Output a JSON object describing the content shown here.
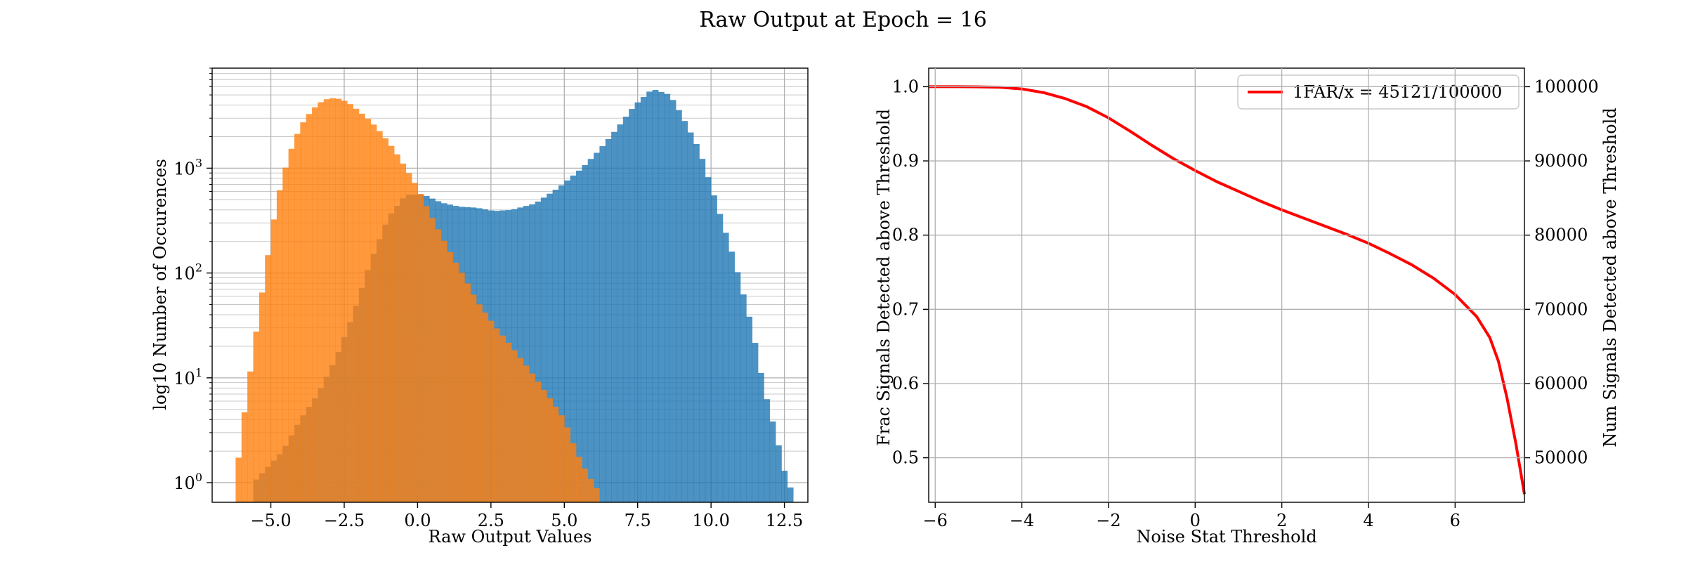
{
  "figure": {
    "suptitle": "Raw Output at Epoch = 16"
  },
  "colors": {
    "signal": "#1f77b4",
    "noise": "#ff7f0e",
    "line": "#ff0000",
    "grid": "#b0b0b0"
  },
  "chart_data": [
    {
      "type": "histogram",
      "title": "",
      "xlabel": "Raw Output Values",
      "ylabel": "log10 Number of Occurences",
      "xlim": [
        -7.0,
        13.3
      ],
      "ylim": [
        0.65,
        9000
      ],
      "yscale": "log",
      "grid": true,
      "bin_width": 0.2,
      "xticks": [
        -5.0,
        -2.5,
        0.0,
        2.5,
        5.0,
        7.5,
        10.0,
        12.5
      ],
      "xtick_labels": [
        "−5.0",
        "−2.5",
        "0.0",
        "2.5",
        "5.0",
        "7.5",
        "10.0",
        "12.5"
      ],
      "yticks_major": [
        {
          "value": 1,
          "base": "10",
          "exp": "0"
        },
        {
          "value": 10,
          "base": "10",
          "exp": "1"
        },
        {
          "value": 100,
          "base": "10",
          "exp": "2"
        },
        {
          "value": 1000,
          "base": "10",
          "exp": "3"
        }
      ],
      "series": [
        {
          "key": "signal",
          "alpha": 0.8,
          "points": [
            [
              -5.6,
              1
            ],
            [
              -4.6,
              2
            ],
            [
              -4.0,
              4
            ],
            [
              -3.4,
              7
            ],
            [
              -2.8,
              15
            ],
            [
              -2.2,
              40
            ],
            [
              -1.6,
              130
            ],
            [
              -1.0,
              340
            ],
            [
              -0.4,
              560
            ],
            [
              0.2,
              560
            ],
            [
              0.8,
              470
            ],
            [
              1.4,
              430
            ],
            [
              2.0,
              420
            ],
            [
              2.6,
              390
            ],
            [
              3.2,
              400
            ],
            [
              4.0,
              460
            ],
            [
              4.8,
              650
            ],
            [
              5.6,
              1000
            ],
            [
              6.2,
              1500
            ],
            [
              6.8,
              2400
            ],
            [
              7.4,
              4000
            ],
            [
              8.0,
              5700
            ],
            [
              8.6,
              5000
            ],
            [
              9.0,
              3200
            ],
            [
              9.6,
              1500
            ],
            [
              10.2,
              450
            ],
            [
              10.8,
              130
            ],
            [
              11.4,
              30
            ],
            [
              11.8,
              8
            ],
            [
              12.2,
              3
            ],
            [
              12.5,
              1.3
            ],
            [
              12.7,
              0.9
            ]
          ]
        },
        {
          "key": "noise",
          "alpha": 0.8,
          "points": [
            [
              -6.2,
              1
            ],
            [
              -6.0,
              3
            ],
            [
              -5.6,
              18
            ],
            [
              -5.2,
              100
            ],
            [
              -4.8,
              480
            ],
            [
              -4.4,
              1300
            ],
            [
              -4.0,
              2500
            ],
            [
              -3.6,
              3600
            ],
            [
              -3.2,
              4500
            ],
            [
              -2.8,
              4700
            ],
            [
              -2.4,
              4300
            ],
            [
              -2.0,
              3500
            ],
            [
              -1.6,
              2800
            ],
            [
              -1.2,
              2100
            ],
            [
              -0.8,
              1500
            ],
            [
              -0.4,
              1000
            ],
            [
              0.0,
              650
            ],
            [
              0.4,
              380
            ],
            [
              0.8,
              230
            ],
            [
              1.2,
              140
            ],
            [
              1.6,
              90
            ],
            [
              2.0,
              55
            ],
            [
              2.6,
              32
            ],
            [
              3.2,
              20
            ],
            [
              3.8,
              12
            ],
            [
              4.4,
              7
            ],
            [
              5.0,
              4
            ],
            [
              5.4,
              2
            ],
            [
              5.8,
              1.2
            ],
            [
              6.2,
              0.8
            ]
          ]
        }
      ]
    },
    {
      "type": "line",
      "title": "",
      "xlabel": "Noise Stat Threshold",
      "ylabel": "Frac Signals Detected above Threshold",
      "ylabel_right": "Num Signals Detected above Threshold",
      "xlim": [
        -6.15,
        7.6
      ],
      "ylim": [
        0.44,
        1.025
      ],
      "ylim_right": [
        44000,
        102500
      ],
      "grid": true,
      "xticks": [
        -6,
        -4,
        -2,
        0,
        2,
        4,
        6
      ],
      "xtick_labels": [
        "−6",
        "−4",
        "−2",
        "0",
        "2",
        "4",
        "6"
      ],
      "yticks": [
        0.5,
        0.6,
        0.7,
        0.8,
        0.9,
        1.0
      ],
      "ytick_labels": [
        "0.5",
        "0.6",
        "0.7",
        "0.8",
        "0.9",
        "1.0"
      ],
      "yticks_right": [
        50000,
        60000,
        70000,
        80000,
        90000,
        100000
      ],
      "ytick_labels_right": [
        "50000",
        "60000",
        "70000",
        "80000",
        "90000",
        "100000"
      ],
      "legend": {
        "placement": "top-right",
        "label": "1FAR/x = 45121/100000"
      },
      "series": [
        {
          "name": "1FAR/x = 45121/100000",
          "x": [
            -6.15,
            -5.5,
            -5.0,
            -4.5,
            -4.0,
            -3.5,
            -3.0,
            -2.5,
            -2.0,
            -1.5,
            -1.0,
            -0.5,
            0.0,
            0.5,
            1.0,
            1.5,
            2.0,
            2.5,
            3.0,
            3.5,
            4.0,
            4.5,
            5.0,
            5.5,
            6.0,
            6.5,
            6.8,
            7.0,
            7.2,
            7.4,
            7.6
          ],
          "y": [
            1.0,
            1.0,
            0.9998,
            0.9992,
            0.997,
            0.992,
            0.984,
            0.973,
            0.958,
            0.94,
            0.921,
            0.903,
            0.887,
            0.872,
            0.859,
            0.846,
            0.834,
            0.823,
            0.812,
            0.801,
            0.789,
            0.775,
            0.76,
            0.742,
            0.72,
            0.69,
            0.662,
            0.63,
            0.58,
            0.52,
            0.451
          ]
        }
      ]
    }
  ]
}
